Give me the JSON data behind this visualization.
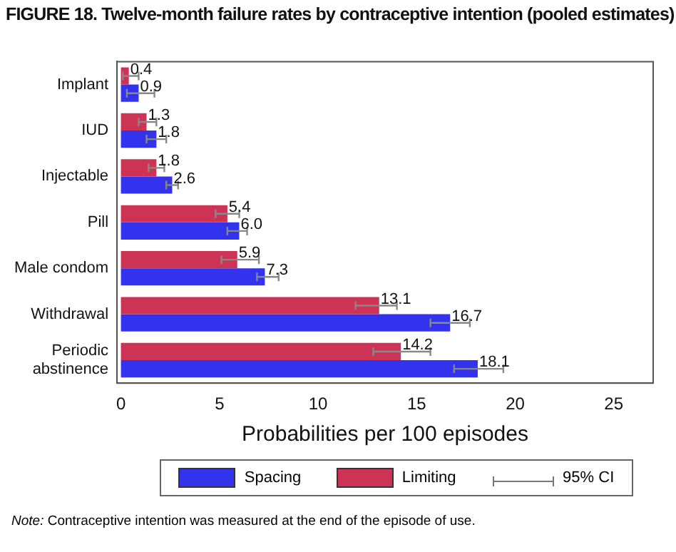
{
  "chart_data": {
    "type": "bar",
    "orientation": "horizontal",
    "title": "FIGURE 18. Twelve-month failure rates by contraceptive intention (pooled estimates)",
    "xlabel": "Probabilities per 100 episodes",
    "categories": [
      "Implant",
      "IUD",
      "Injectable",
      "Pill",
      "Male condom",
      "Withdrawal",
      "Periodic abstinence"
    ],
    "series": [
      {
        "name": "Spacing",
        "color": "#3333ee",
        "values": [
          0.9,
          1.8,
          2.6,
          6.0,
          7.3,
          16.7,
          18.1
        ],
        "value_labels": [
          "0.9",
          "1.8",
          "2.6",
          "6.0",
          "7.3",
          "16.7",
          "18.1"
        ],
        "errors": [
          [
            0.3,
            1.7
          ],
          [
            1.3,
            2.3
          ],
          [
            2.3,
            2.9
          ],
          [
            5.4,
            6.4
          ],
          [
            6.9,
            8.0
          ],
          [
            15.7,
            17.7
          ],
          [
            16.9,
            19.4
          ]
        ]
      },
      {
        "name": "Limiting",
        "color": "#cc3355",
        "values": [
          0.4,
          1.3,
          1.8,
          5.4,
          5.9,
          13.1,
          14.2
        ],
        "value_labels": [
          "0.4",
          "1.3",
          "1.8",
          "5.4",
          "5.9",
          "13.1",
          "14.2"
        ],
        "errors": [
          [
            0.1,
            0.9
          ],
          [
            0.9,
            1.8
          ],
          [
            1.4,
            2.2
          ],
          [
            4.8,
            6.0
          ],
          [
            5.1,
            7.0
          ],
          [
            11.9,
            14.0
          ],
          [
            12.8,
            15.7
          ]
        ]
      }
    ],
    "xlim": [
      -0.2,
      27
    ],
    "xticks": [
      0,
      5,
      10,
      15,
      20,
      25
    ],
    "grid": false,
    "legend": "bottom",
    "annotations": [
      "95% CI",
      "Note: Contraceptive intention was measured at the end of the episode of use."
    ]
  }
}
